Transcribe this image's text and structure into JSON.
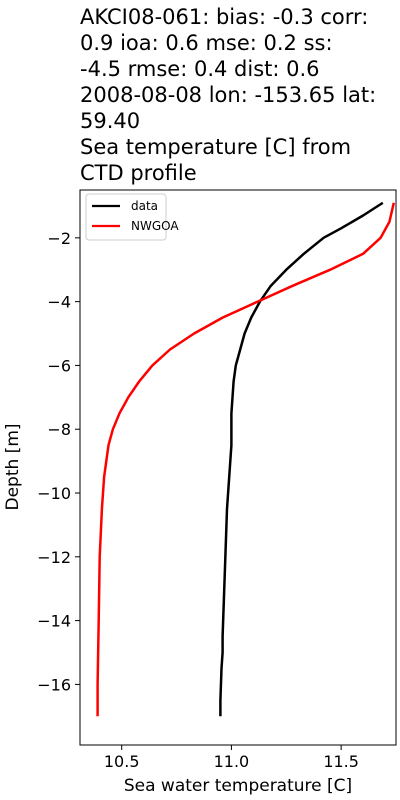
{
  "chart_data": {
    "type": "line",
    "title_lines": [
      "AKCI08-061: bias: -0.3  corr:",
      "0.9  ioa: 0.6  mse: 0.2  ss:",
      "-4.5  rmse: 0.4  dist: 0.6",
      "2008-08-08 lon: -153.65 lat:",
      "59.40",
      "Sea temperature [C] from",
      "CTD profile"
    ],
    "xlabel": "Sea water temperature [C]",
    "ylabel": "Depth [m]",
    "xlim": [
      10.31,
      11.75
    ],
    "ylim": [
      -17.9,
      -0.5
    ],
    "xticks": [
      10.5,
      11.0,
      11.5
    ],
    "xtick_labels": [
      "10.5",
      "11.0",
      "11.5"
    ],
    "yticks": [
      -2,
      -4,
      -6,
      -8,
      -10,
      -12,
      -14,
      -16
    ],
    "ytick_labels": [
      "−2",
      "−4",
      "−6",
      "−8",
      "−10",
      "−12",
      "−14",
      "−16"
    ],
    "grid": false,
    "legend_position": "top-left",
    "series": [
      {
        "name": "data",
        "color": "#000000",
        "x": [
          11.69,
          11.6,
          11.5,
          11.42,
          11.33,
          11.25,
          11.18,
          11.13,
          11.09,
          11.06,
          11.04,
          11.02,
          11.01,
          11.005,
          11.0,
          11.0,
          11.0,
          10.99,
          10.98,
          10.975,
          10.97,
          10.965,
          10.96,
          10.96,
          10.955,
          10.95,
          10.95
        ],
        "y": [
          -0.9,
          -1.3,
          -1.7,
          -2.0,
          -2.5,
          -3.0,
          -3.5,
          -4.0,
          -4.5,
          -5.0,
          -5.5,
          -6.0,
          -6.5,
          -7.0,
          -7.5,
          -8.0,
          -8.5,
          -9.5,
          -10.5,
          -11.5,
          -12.5,
          -13.5,
          -14.5,
          -15.0,
          -15.5,
          -16.5,
          -17.0
        ]
      },
      {
        "name": "NWGOA",
        "color": "#ff0000",
        "x": [
          11.74,
          11.72,
          11.68,
          11.6,
          11.45,
          11.28,
          11.12,
          10.96,
          10.83,
          10.72,
          10.64,
          10.58,
          10.53,
          10.49,
          10.46,
          10.44,
          10.42,
          10.41,
          10.4,
          10.395,
          10.39,
          10.39
        ],
        "y": [
          -0.9,
          -1.5,
          -2.0,
          -2.5,
          -3.0,
          -3.5,
          -4.0,
          -4.5,
          -5.0,
          -5.5,
          -6.0,
          -6.5,
          -7.0,
          -7.5,
          -8.0,
          -8.5,
          -9.5,
          -10.5,
          -12.0,
          -14.0,
          -16.0,
          -17.0
        ]
      }
    ]
  }
}
